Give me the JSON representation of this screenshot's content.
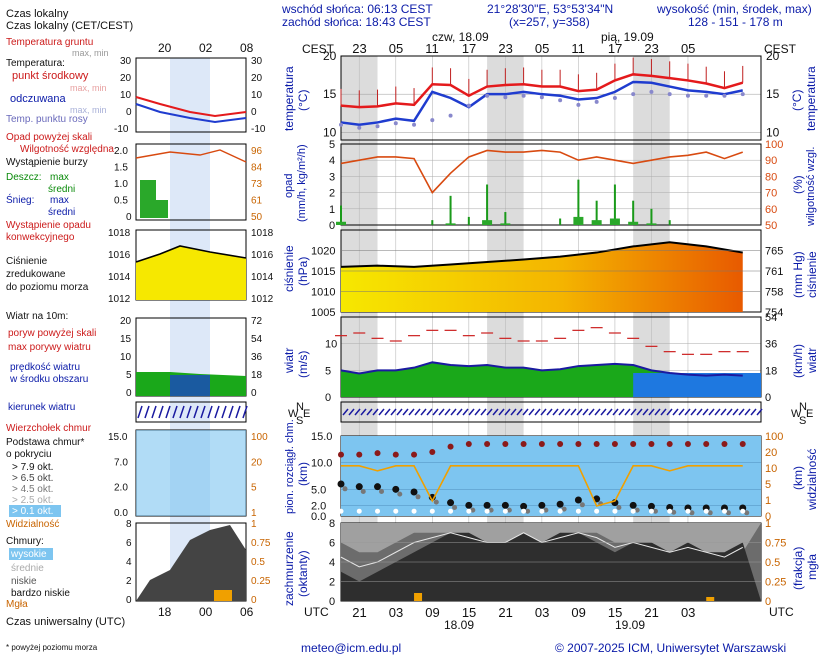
{
  "header": {
    "sunrise": "wschód słońca: 06:13 CEST",
    "sunset": "zachód słońca: 18:43 CEST",
    "coords": "21°28'30\"E, 53°53'34\"N",
    "grid": "(x=257, y=358)",
    "elevation_title": "wysokość (min, środek, max)",
    "elevation_values": "128 - 151 - 178 m"
  },
  "legend": {
    "time_title": "Czas lokalny (CET/CEST)",
    "ground_temp": "Temperatura gruntu",
    "max_min": "max, min",
    "temperature": "Temperatura:",
    "mid_point": "punkt środkowy",
    "max_min2": "max, min",
    "feels": "odczuwana",
    "max_min3": "max, min",
    "dew": "Temp. punktu rosy",
    "precip_over": "Opad powyżej skali",
    "humidity": "Wilgotność względna",
    "storm": "Wystąpienie burzy",
    "rain": "Deszcz:",
    "rain_max": "max",
    "rain_mean": "średni",
    "snow": "Śnieg:",
    "snow_max": "max",
    "snow_mean": "średni",
    "conv1": "Wystąpienie opadu",
    "conv2": "konwekcyjnego",
    "pressure1": "Ciśnienie",
    "pressure2": "zredukowane",
    "pressure3": "do poziomu morza",
    "wind_title": "Wiatr na 10m:",
    "gust_over": "poryw powyżej skali",
    "gust_max": "max porywy wiatru",
    "wind_speed1": "prędkość wiatru",
    "wind_speed2": "w środku obszaru",
    "wind_dir": "kierunek wiatru",
    "cloud_top": "Wierzchołek chmur",
    "cloud_base1": "Podstawa chmur*",
    "cloud_base2": "o pokryciu",
    "okt1": "> 7.9 okt.",
    "okt2": "> 6.5 okt.",
    "okt3": "> 4.5 okt.",
    "okt4": "> 2.5 okt.",
    "okt5": "> 0.1 okt.",
    "visibility": "Widzialność",
    "clouds": "Chmury:",
    "high": "wysokie",
    "mid": "średnie",
    "low": "niskie",
    "very_low": "bardzo niskie",
    "fog": "Mgła",
    "utc_title": "Czas uniwersalny (UTC)",
    "footnote": "* powyżej poziomu morza"
  },
  "axes": {
    "cest": "CEST",
    "utc": "UTC",
    "day1": "czw, 18.09",
    "day2": "pią, 19.09",
    "date1": "18.09",
    "date2": "19.09",
    "top_hours": [
      "23",
      "05",
      "11",
      "17",
      "23",
      "05",
      "11",
      "17",
      "23",
      "05"
    ],
    "bottom_hours": [
      "21",
      "03",
      "09",
      "15",
      "21",
      "03",
      "09",
      "15",
      "21",
      "03"
    ],
    "legend_top_hours": [
      "20",
      "02",
      "08"
    ],
    "legend_bottom_hours": [
      "18",
      "00",
      "06"
    ]
  },
  "panel_labels": {
    "temp_left": "temperatura",
    "temp_unit": "(°C)",
    "precip_left": "opad",
    "precip_unit": "(mm/h, kg/m²/h)",
    "hum_right": "wilgotność wzgl.",
    "hum_unit": "(%)",
    "press_left": "ciśnienie",
    "press_unit": "(hPa)",
    "press_right_unit": "(mm Hg)",
    "wind_left": "wiatr",
    "wind_unit": "(m/s)",
    "wind_right_unit": "(km/h)",
    "wind_right": "wiatr",
    "cloud_left1": "pion. rozciągł. chm.",
    "cloud_left2": "(km)",
    "vis_right": "widzialność",
    "vis_unit": "(km)",
    "cover_left1": "zachmurzenie",
    "cover_left2": "(oktanty)",
    "fog_right1": "mgła",
    "fog_right2": "(frakcja)"
  },
  "ticks": {
    "temp_left": [
      "20",
      "15",
      "10"
    ],
    "temp_right": [
      "20",
      "15",
      "10"
    ],
    "precip_left": [
      "5",
      "4",
      "3",
      "2",
      "1",
      "0"
    ],
    "hum_right": [
      "100",
      "90",
      "80",
      "70",
      "60",
      "50"
    ],
    "press_left": [
      "1020",
      "1015",
      "1010",
      "1005"
    ],
    "press_right": [
      "765",
      "761",
      "758",
      "754"
    ],
    "wind_left": [
      "10",
      "5",
      "0"
    ],
    "wind_right": [
      "54",
      "36",
      "18",
      "0"
    ],
    "cloud_left": [
      "15.0",
      "10.0",
      "5.0",
      "2.0",
      "0.0"
    ],
    "vis_right": [
      "100",
      "20",
      "10",
      "5",
      "1",
      "0"
    ],
    "cover_left": [
      "8",
      "6",
      "4",
      "2",
      "0"
    ],
    "fog_right": [
      "1",
      "0.75",
      "0.5",
      "0.25",
      "0"
    ],
    "leg_temp_left": [
      "30",
      "20",
      "10",
      "0",
      "-10"
    ],
    "leg_temp_right": [
      "30",
      "20",
      "10",
      "0",
      "-10"
    ],
    "leg_precip_left": [
      "2.0",
      "1.5",
      "1.0",
      "0.5",
      "0"
    ],
    "leg_hum_right": [
      "96",
      "84",
      "73",
      "61",
      "50"
    ],
    "leg_press_left": [
      "1018",
      "1016",
      "1014",
      "1012"
    ],
    "leg_press_right": [
      "1018",
      "1016",
      "1014",
      "1012"
    ],
    "leg_wind_left": [
      "20",
      "15",
      "10",
      "5",
      "0"
    ],
    "leg_wind_right": [
      "72",
      "54",
      "36",
      "18",
      "0"
    ],
    "leg_cloud_left": [
      "15.0",
      "7.0",
      "2.0",
      "0.0"
    ],
    "leg_vis_right": [
      "100",
      "20",
      "5",
      "1"
    ],
    "leg_cover_left": [
      "8",
      "6",
      "4",
      "2",
      "0"
    ],
    "leg_fog_right": [
      "1",
      "0.75",
      "0.5",
      "0.25",
      "0"
    ]
  },
  "wind_dir_labels": {
    "n": "N",
    "s": "S",
    "w": "W",
    "e": "E"
  },
  "footer": {
    "email": "meteo@icm.edu.pl",
    "copyright": "© 2007-2025 ICM, Uniwersytet Warszawski"
  },
  "colors": {
    "temp_mid": "#e41a1c",
    "temp_feels": "#1f3ccf",
    "dew": "#8888cc",
    "humidity": "#d84a10",
    "pressure_fill_1": "#f6e800",
    "pressure_fill_2": "#e85a00",
    "wind_fill": "#1aa81a",
    "wind_fill_strong": "#1e78e0",
    "visibility": "#f0a000",
    "cloud_bg": "#7dc5f0",
    "night_band": "#dcdcdc",
    "axis_blue": "#0a1aa8"
  },
  "chart_data": [
    {
      "type": "line",
      "title": "temperatura",
      "ylabel": "(°C)",
      "ylim": [
        9,
        20
      ],
      "x_hours_utc": [
        18,
        21,
        24,
        27,
        30,
        33,
        36,
        39,
        42,
        45,
        48,
        51,
        54,
        57,
        60,
        63,
        66,
        69,
        72,
        75,
        78,
        81,
        84
      ],
      "series": [
        {
          "name": "punkt środkowy",
          "values": [
            13.5,
            13.3,
            13.4,
            13.8,
            13.6,
            16.3,
            16.2,
            14.8,
            16.0,
            16.2,
            16.3,
            16.0,
            16.0,
            15.4,
            15.6,
            16.8,
            17.6,
            17.4,
            17.1,
            16.8,
            16.4,
            15.8,
            16.5
          ]
        },
        {
          "name": "odczuwana",
          "values": [
            11.3,
            11.0,
            11.3,
            11.8,
            11.5,
            15.3,
            14.5,
            13.3,
            15.0,
            15.0,
            15.3,
            15.0,
            14.8,
            14.3,
            14.5,
            15.3,
            16.6,
            16.5,
            16.0,
            15.5,
            15.3,
            15.0,
            15.5
          ]
        },
        {
          "name": "Temp. punktu rosy",
          "values": [
            11.0,
            10.6,
            10.8,
            11.2,
            11.0,
            11.6,
            12.2,
            13.5,
            14.8,
            14.6,
            14.8,
            14.6,
            14.2,
            13.6,
            14.0,
            14.5,
            15.0,
            15.3,
            15.0,
            14.8,
            14.8,
            14.8,
            15.0
          ]
        }
      ]
    },
    {
      "type": "line",
      "title": "wilgotność wzgl.",
      "ylabel": "(%)",
      "ylim": [
        50,
        100
      ],
      "x_hours_utc": [
        18,
        21,
        24,
        27,
        30,
        33,
        36,
        39,
        42,
        45,
        48,
        51,
        54,
        57,
        60,
        63,
        66,
        69,
        72,
        75,
        78,
        81,
        84
      ],
      "series": [
        {
          "name": "Wilgotność względna",
          "values": [
            88,
            90,
            92,
            92,
            91,
            70,
            82,
            92,
            96,
            95,
            95,
            96,
            95,
            90,
            92,
            90,
            88,
            90,
            92,
            93,
            95,
            91,
            95
          ]
        }
      ]
    },
    {
      "type": "bar",
      "title": "opad",
      "ylabel": "(mm/h, kg/m²/h)",
      "ylim": [
        0,
        5
      ],
      "x_hours_utc": [
        18,
        33,
        36,
        39,
        42,
        45,
        54,
        57,
        60,
        63,
        66,
        69,
        72
      ],
      "series": [
        {
          "name": "Deszcz: max",
          "values": [
            1.2,
            0.3,
            1.8,
            0.5,
            2.5,
            0.8,
            0.4,
            2.8,
            1.5,
            2.5,
            1.5,
            1.0,
            0.3
          ]
        },
        {
          "name": "Deszcz: średni",
          "values": [
            0.2,
            0.0,
            0.1,
            0.0,
            0.3,
            0.1,
            0.0,
            0.5,
            0.3,
            0.4,
            0.2,
            0.1,
            0.0
          ]
        }
      ]
    },
    {
      "type": "area",
      "title": "ciśnienie",
      "ylabel": "(hPa)",
      "ylim": [
        1005,
        1025
      ],
      "x_hours_utc": [
        18,
        24,
        30,
        36,
        42,
        48,
        54,
        60,
        66,
        72,
        78,
        84
      ],
      "series": [
        {
          "name": "Ciśnienie zredukowane do poziomu morza",
          "values": [
            1016.0,
            1016.3,
            1016.0,
            1016.6,
            1017.2,
            1017.8,
            1018.5,
            1019.5,
            1021.0,
            1022.0,
            1021.0,
            1019.5
          ]
        }
      ]
    },
    {
      "type": "area",
      "title": "wiatr",
      "ylabel": "(m/s)",
      "ylim": [
        0,
        15
      ],
      "x_hours_utc": [
        18,
        21,
        24,
        27,
        30,
        33,
        36,
        39,
        42,
        45,
        48,
        51,
        54,
        57,
        60,
        63,
        66,
        69,
        72,
        75,
        78,
        81,
        84
      ],
      "series": [
        {
          "name": "prędkość wiatru w środku obszaru",
          "values": [
            5.0,
            4.4,
            5.0,
            5.0,
            5.5,
            6.5,
            6.0,
            5.8,
            6.0,
            5.5,
            5.5,
            5.0,
            5.2,
            5.8,
            6.0,
            6.2,
            6.0,
            5.0,
            4.5,
            4.2,
            4.0,
            4.2,
            4.0
          ]
        },
        {
          "name": "max porywy wiatru",
          "values": [
            11.5,
            12.0,
            11.0,
            10.5,
            11.5,
            12.5,
            12.5,
            11.5,
            12.0,
            11.0,
            10.5,
            10.5,
            11.0,
            12.5,
            13.0,
            12.0,
            11.0,
            9.5,
            8.5,
            8.0,
            8.0,
            8.5,
            8.5
          ]
        }
      ]
    },
    {
      "type": "scatter",
      "title": "pion. rozciągł. chm.",
      "ylabel": "(km)",
      "ylim": [
        0,
        15
      ],
      "x_hours_utc": [
        18,
        21,
        24,
        27,
        30,
        33,
        36,
        39,
        42,
        45,
        48,
        51,
        54,
        57,
        60,
        63,
        66,
        69,
        72,
        75,
        78,
        81,
        84
      ],
      "series": [
        {
          "name": "Wierzchołek chmur",
          "values": [
            11.5,
            11.5,
            11.8,
            11.5,
            11.5,
            12.0,
            13.0,
            13.5,
            13.5,
            13.5,
            13.5,
            13.5,
            13.5,
            13.5,
            13.5,
            13.5,
            13.5,
            13.5,
            13.5,
            13.5,
            13.5,
            13.5,
            13.5
          ]
        },
        {
          "name": "> 7.9 okt.",
          "values": [
            6.0,
            5.5,
            5.5,
            5.0,
            4.5,
            3.5,
            2.5,
            2.0,
            2.0,
            2.0,
            1.8,
            2.0,
            2.2,
            3.0,
            3.2,
            2.5,
            2.0,
            1.8,
            1.6,
            1.5,
            1.5,
            1.5,
            1.5
          ]
        }
      ]
    },
    {
      "type": "line",
      "title": "widzialność",
      "ylabel": "(km)",
      "ylim": [
        0,
        100
      ],
      "x_hours_utc": [
        18,
        21,
        24,
        27,
        30,
        33,
        36,
        39,
        42,
        45,
        48,
        51,
        54,
        57,
        60,
        63,
        66,
        69,
        72,
        75,
        78,
        81,
        84
      ],
      "series": [
        {
          "name": "Widzialność",
          "values": [
            20,
            20,
            18,
            20,
            20,
            6,
            20,
            20,
            20,
            20,
            20,
            20,
            20,
            20,
            4,
            6,
            20,
            20,
            18,
            20,
            20,
            20,
            20
          ]
        }
      ]
    },
    {
      "type": "area",
      "title": "zachmurzenie",
      "ylabel": "(oktanty)",
      "ylim": [
        0,
        8
      ],
      "x_hours_utc": [
        18,
        21,
        24,
        27,
        30,
        33,
        36,
        39,
        42,
        45,
        48,
        51,
        54,
        57,
        60,
        63,
        66,
        69,
        72,
        75,
        78,
        81,
        84
      ],
      "series": [
        {
          "name": "wysokie",
          "values": [
            6,
            5,
            5,
            6,
            7,
            7,
            7,
            6,
            6,
            6,
            7,
            6,
            6,
            7,
            7,
            6,
            6,
            5,
            5,
            5,
            5,
            4,
            5
          ]
        },
        {
          "name": "niskie",
          "values": [
            3,
            2,
            3,
            4,
            5,
            6,
            7,
            7,
            6,
            6,
            7,
            6,
            7,
            7,
            6,
            5,
            6,
            6,
            5,
            6,
            5,
            5,
            6
          ]
        }
      ]
    }
  ]
}
